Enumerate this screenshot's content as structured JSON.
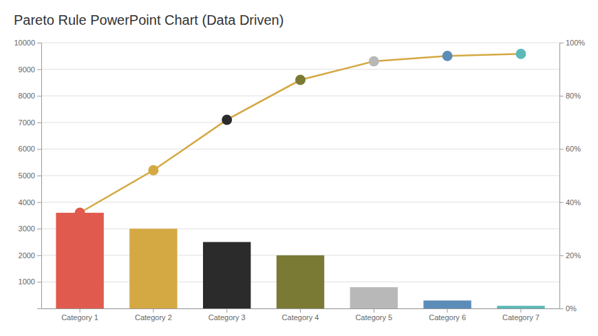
{
  "chart_data": {
    "type": "bar",
    "title": "Pareto Rule PowerPoint Chart (Data Driven)",
    "categories": [
      "Category 1",
      "Category 2",
      "Category 3",
      "Category 4",
      "Category 5",
      "Category 6",
      "Category 7"
    ],
    "series": [
      {
        "type": "bar",
        "colors": [
          "#E05A4E",
          "#D4A843",
          "#2B2B2B",
          "#7A7A35",
          "#B8B8B8",
          "#5B8DB8",
          "#5BBAB8"
        ],
        "values": [
          3600,
          3000,
          2500,
          2000,
          800,
          300,
          100
        ]
      },
      {
        "type": "line",
        "color": "#D4A843",
        "marker": "circle",
        "colors": [
          "#E05A4E",
          "#D4A843",
          "#2B2B2B",
          "#7A7A35",
          "#B8B8B8",
          "#5B8DB8",
          "#5BBAB8"
        ],
        "values": [
          3600,
          5200,
          7100,
          8600,
          9300,
          9500,
          9580
        ]
      }
    ],
    "ylim": [
      0,
      10000
    ],
    "yticks": [
      {
        "value": 0,
        "label": null
      },
      1000,
      2000,
      3000,
      4000,
      5000,
      6000,
      7000,
      8000,
      9000,
      10000
    ],
    "y2lim": [
      0,
      100
    ],
    "y2ticks": [
      {
        "value": 0,
        "label": "0%"
      },
      {
        "value": 20,
        "label": "20%"
      },
      {
        "value": 40,
        "label": "40%"
      },
      {
        "value": 60,
        "label": "60%"
      },
      {
        "value": 80,
        "label": "80%"
      },
      {
        "value": 100,
        "label": "100%"
      }
    ],
    "grid": true
  }
}
